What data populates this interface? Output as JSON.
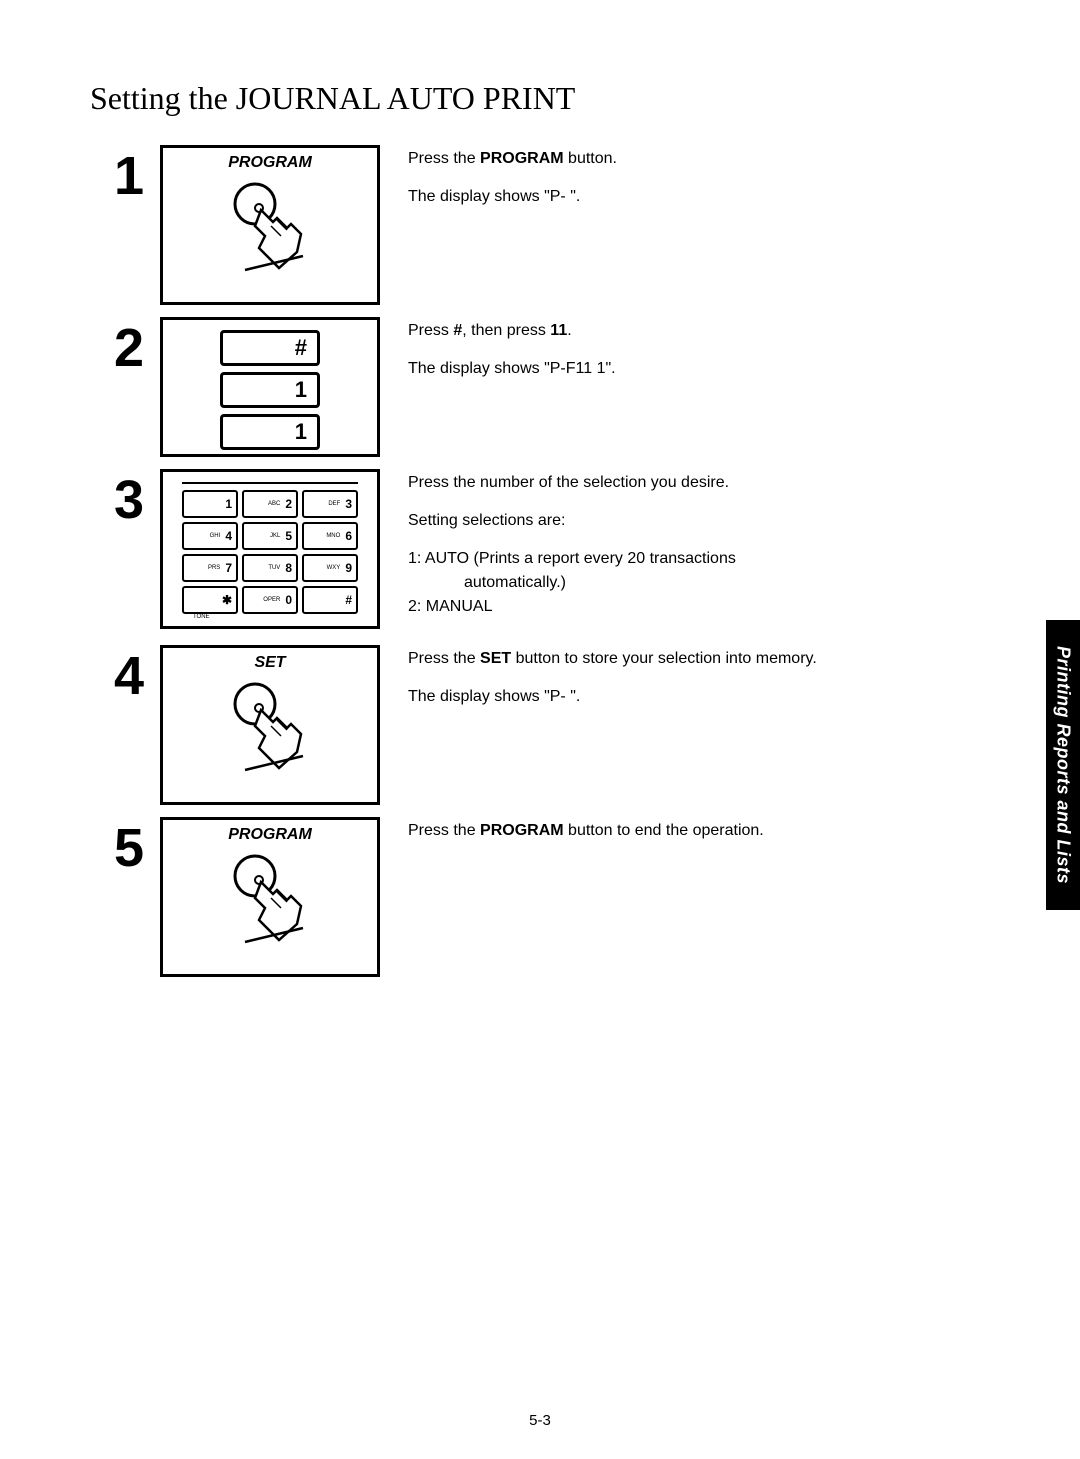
{
  "title": "Setting the JOURNAL AUTO PRINT",
  "side_tab": "Printing Reports and Lists",
  "page_number": "5-3",
  "steps": [
    {
      "num": "1",
      "panel_type": "finger",
      "panel_label": "PROGRAM",
      "lines": [
        {
          "type": "rich",
          "parts": [
            "Press the ",
            {
              "bold": "PROGRAM"
            },
            " button."
          ]
        },
        {
          "type": "plain",
          "text": "The display shows \"P-   \"."
        }
      ]
    },
    {
      "num": "2",
      "panel_type": "keys3",
      "keys": [
        "#",
        "1",
        "1"
      ],
      "lines": [
        {
          "type": "rich",
          "parts": [
            "Press ",
            {
              "bold": "#"
            },
            ", then press ",
            {
              "bold": "11"
            },
            "."
          ]
        },
        {
          "type": "plain",
          "text": "The display shows \"P-F11  1\"."
        }
      ]
    },
    {
      "num": "3",
      "panel_type": "keypad",
      "keypad": [
        {
          "sub": "",
          "main": "1"
        },
        {
          "sub": "ABC",
          "main": "2"
        },
        {
          "sub": "DEF",
          "main": "3"
        },
        {
          "sub": "GHI",
          "main": "4"
        },
        {
          "sub": "JKL",
          "main": "5"
        },
        {
          "sub": "MNO",
          "main": "6"
        },
        {
          "sub": "PRS",
          "main": "7"
        },
        {
          "sub": "TUV",
          "main": "8"
        },
        {
          "sub": "WXY",
          "main": "9"
        },
        {
          "sub": "",
          "main": "✱"
        },
        {
          "sub": "OPER",
          "main": "0"
        },
        {
          "sub": "",
          "main": "#"
        }
      ],
      "tone_label": "TONE",
      "lines": [
        {
          "type": "plain",
          "text": "Press the number of the selection you desire."
        },
        {
          "type": "plain",
          "text": "Setting selections are:"
        },
        {
          "type": "plain",
          "text": "1: AUTO (Prints a report every 20 transactions",
          "no_margin": true
        },
        {
          "type": "plain",
          "text": "automatically.)",
          "indent": true,
          "no_margin": true
        },
        {
          "type": "plain",
          "text": "2: MANUAL"
        }
      ]
    },
    {
      "num": "4",
      "panel_type": "finger",
      "panel_label": "SET",
      "lines": [
        {
          "type": "rich",
          "parts": [
            "Press the ",
            {
              "bold": "SET"
            },
            " button to store your selection into memory."
          ]
        },
        {
          "type": "plain",
          "text": "The display shows \"P-  \"."
        }
      ]
    },
    {
      "num": "5",
      "panel_type": "finger",
      "panel_label": "PROGRAM",
      "lines": [
        {
          "type": "rich",
          "parts": [
            "Press the ",
            {
              "bold": "PROGRAM"
            },
            " button to end the operation."
          ]
        }
      ]
    }
  ]
}
